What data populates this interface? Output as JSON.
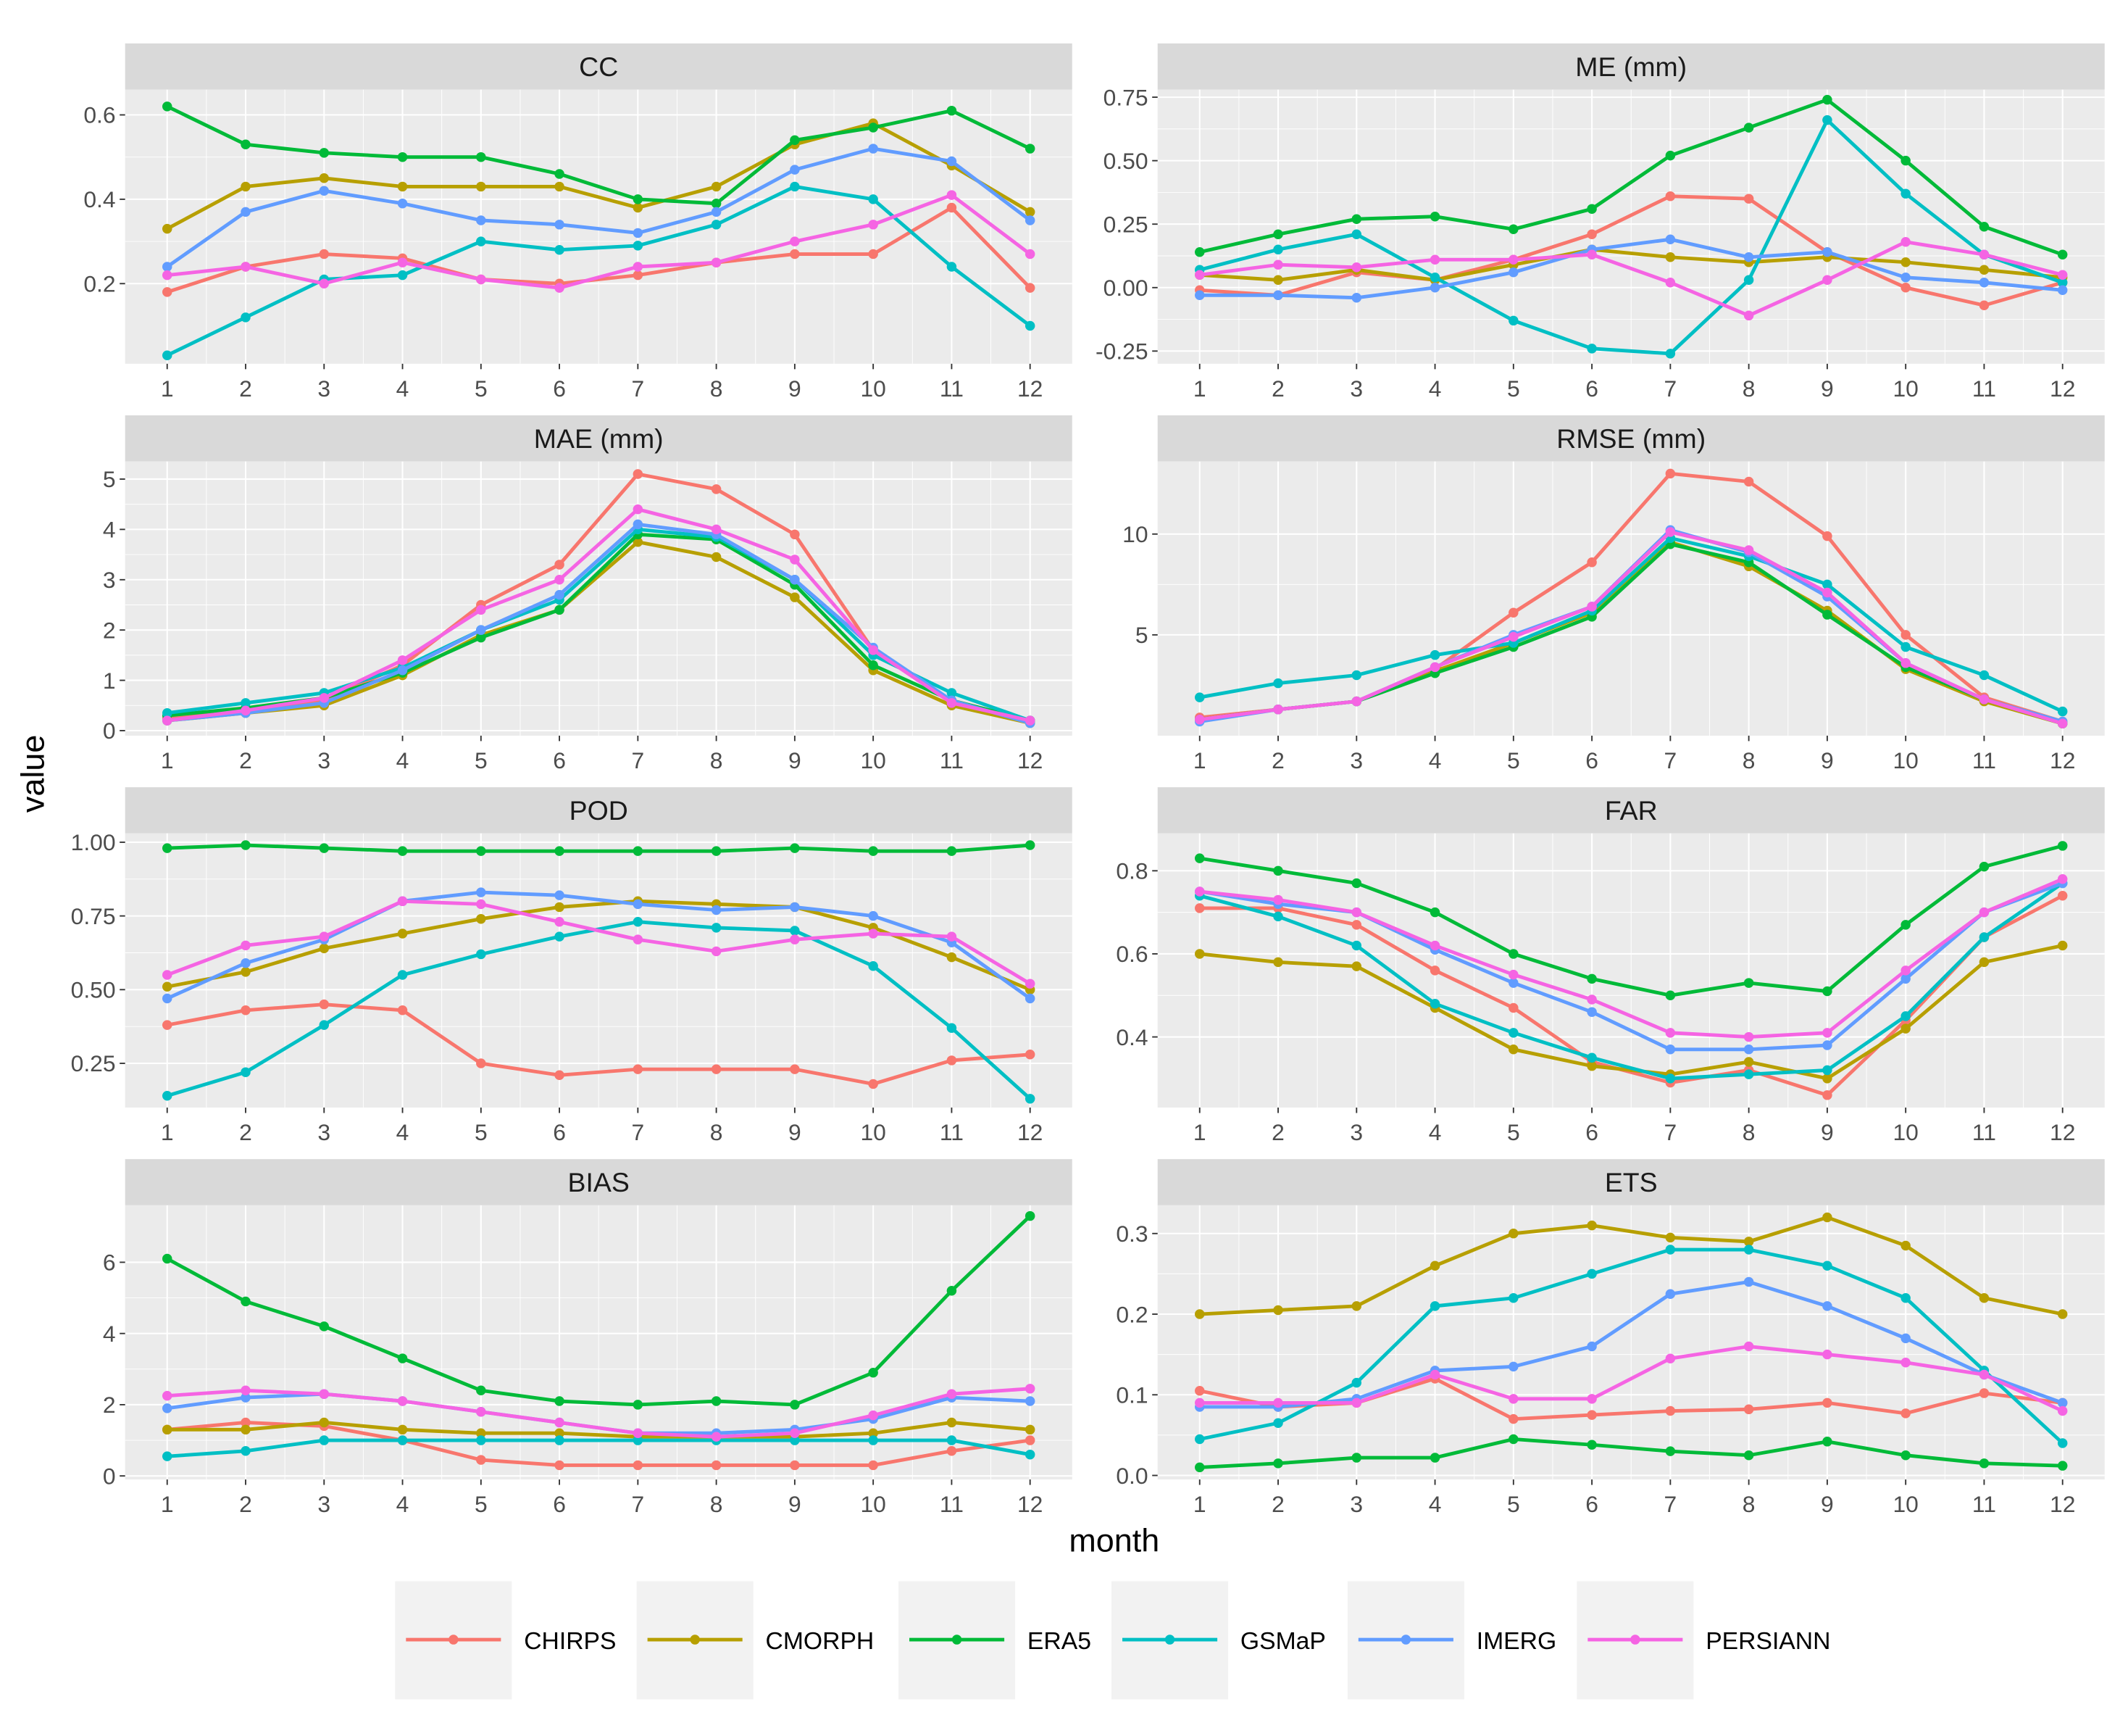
{
  "chart_data": {
    "type": "line",
    "xlabel": "month",
    "ylabel": "value",
    "x": [
      1,
      2,
      3,
      4,
      5,
      6,
      7,
      8,
      9,
      10,
      11,
      12
    ],
    "legend": {
      "placement": "bottom",
      "entries": [
        "CHIRPS",
        "CMORPH",
        "ERA5",
        "GSMaP",
        "IMERG",
        "PERSIANN"
      ],
      "colors": [
        "#F8766D",
        "#B79F00",
        "#00BA38",
        "#00BFC4",
        "#619CFF",
        "#F564E3"
      ]
    },
    "panels": [
      {
        "title": "CC",
        "ylim": [
          0.01,
          0.66
        ],
        "yticks": [
          0.2,
          0.4,
          0.6
        ],
        "ytick_labels": [
          "0.2",
          "0.4",
          "0.6"
        ],
        "series": [
          {
            "name": "CHIRPS",
            "values": [
              0.18,
              0.24,
              0.27,
              0.26,
              0.21,
              0.2,
              0.22,
              0.25,
              0.27,
              0.27,
              0.38,
              0.19
            ]
          },
          {
            "name": "CMORPH",
            "values": [
              0.33,
              0.43,
              0.45,
              0.43,
              0.43,
              0.43,
              0.38,
              0.43,
              0.53,
              0.58,
              0.48,
              0.37
            ]
          },
          {
            "name": "ERA5",
            "values": [
              0.62,
              0.53,
              0.51,
              0.5,
              0.5,
              0.46,
              0.4,
              0.39,
              0.54,
              0.57,
              0.61,
              0.52
            ]
          },
          {
            "name": "GSMaP",
            "values": [
              0.03,
              0.12,
              0.21,
              0.22,
              0.3,
              0.28,
              0.29,
              0.34,
              0.43,
              0.4,
              0.24,
              0.1
            ]
          },
          {
            "name": "IMERG",
            "values": [
              0.24,
              0.37,
              0.42,
              0.39,
              0.35,
              0.34,
              0.32,
              0.37,
              0.47,
              0.52,
              0.49,
              0.35
            ]
          },
          {
            "name": "PERSIANN",
            "values": [
              0.22,
              0.24,
              0.2,
              0.25,
              0.21,
              0.19,
              0.24,
              0.25,
              0.3,
              0.34,
              0.41,
              0.27
            ]
          }
        ]
      },
      {
        "title": "ME (mm)",
        "ylim": [
          -0.3,
          0.78
        ],
        "yticks": [
          -0.25,
          0,
          0.25,
          0.5,
          0.75
        ],
        "ytick_labels": [
          "-0.25",
          "0.00",
          "0.25",
          "0.50",
          "0.75"
        ],
        "series": [
          {
            "name": "CHIRPS",
            "values": [
              -0.01,
              -0.03,
              0.06,
              0.03,
              0.11,
              0.21,
              0.36,
              0.35,
              0.14,
              0.0,
              -0.07,
              0.02
            ]
          },
          {
            "name": "CMORPH",
            "values": [
              0.05,
              0.03,
              0.07,
              0.03,
              0.09,
              0.15,
              0.12,
              0.1,
              0.12,
              0.1,
              0.07,
              0.04
            ]
          },
          {
            "name": "ERA5",
            "values": [
              0.14,
              0.21,
              0.27,
              0.28,
              0.23,
              0.31,
              0.52,
              0.63,
              0.74,
              0.5,
              0.24,
              0.13
            ]
          },
          {
            "name": "GSMaP",
            "values": [
              0.07,
              0.15,
              0.21,
              0.04,
              -0.13,
              -0.24,
              -0.26,
              0.03,
              0.66,
              0.37,
              0.13,
              0.02
            ]
          },
          {
            "name": "IMERG",
            "values": [
              -0.03,
              -0.03,
              -0.04,
              0.0,
              0.06,
              0.15,
              0.19,
              0.12,
              0.14,
              0.04,
              0.02,
              -0.01
            ]
          },
          {
            "name": "PERSIANN",
            "values": [
              0.05,
              0.09,
              0.08,
              0.11,
              0.11,
              0.13,
              0.02,
              -0.11,
              0.03,
              0.18,
              0.13,
              0.05
            ]
          }
        ]
      },
      {
        "title": "MAE (mm)",
        "ylim": [
          -0.1,
          5.35
        ],
        "yticks": [
          0,
          1,
          2,
          3,
          4,
          5
        ],
        "ytick_labels": [
          "0",
          "1",
          "2",
          "3",
          "4",
          "5"
        ],
        "series": [
          {
            "name": "CHIRPS",
            "values": [
              0.25,
              0.4,
              0.6,
              1.3,
              2.5,
              3.3,
              5.1,
              4.8,
              3.9,
              1.6,
              0.6,
              0.2
            ]
          },
          {
            "name": "CMORPH",
            "values": [
              0.2,
              0.35,
              0.5,
              1.1,
              1.9,
              2.4,
              3.75,
              3.45,
              2.65,
              1.2,
              0.5,
              0.15
            ]
          },
          {
            "name": "ERA5",
            "values": [
              0.3,
              0.45,
              0.65,
              1.15,
              1.85,
              2.4,
              3.9,
              3.8,
              2.9,
              1.3,
              0.6,
              0.2
            ]
          },
          {
            "name": "GSMaP",
            "values": [
              0.35,
              0.55,
              0.75,
              1.25,
              2.0,
              2.6,
              4.0,
              3.85,
              3.0,
              1.5,
              0.75,
              0.2
            ]
          },
          {
            "name": "IMERG",
            "values": [
              0.2,
              0.35,
              0.55,
              1.2,
              2.0,
              2.7,
              4.1,
              3.9,
              3.0,
              1.65,
              0.6,
              0.15
            ]
          },
          {
            "name": "PERSIANN",
            "values": [
              0.2,
              0.4,
              0.65,
              1.4,
              2.4,
              3.0,
              4.4,
              4.0,
              3.4,
              1.6,
              0.55,
              0.2
            ]
          }
        ]
      },
      {
        "title": "RMSE (mm)",
        "ylim": [
          0.0,
          13.6
        ],
        "yticks": [
          5,
          10
        ],
        "ytick_labels": [
          "5",
          "10"
        ],
        "series": [
          {
            "name": "CHIRPS",
            "values": [
              0.9,
              1.3,
              1.7,
              3.3,
              6.1,
              8.6,
              13.0,
              12.6,
              9.9,
              5.0,
              1.9,
              0.7
            ]
          },
          {
            "name": "CMORPH",
            "values": [
              0.8,
              1.3,
              1.7,
              3.2,
              4.6,
              6.1,
              9.6,
              8.4,
              6.2,
              3.3,
              1.7,
              0.6
            ]
          },
          {
            "name": "ERA5",
            "values": [
              0.8,
              1.3,
              1.7,
              3.1,
              4.4,
              5.9,
              9.5,
              8.6,
              6.0,
              3.4,
              1.8,
              0.6
            ]
          },
          {
            "name": "GSMaP",
            "values": [
              1.9,
              2.6,
              3.0,
              4.0,
              4.6,
              6.2,
              9.8,
              8.9,
              7.5,
              4.4,
              3.0,
              1.2
            ]
          },
          {
            "name": "IMERG",
            "values": [
              0.7,
              1.3,
              1.7,
              3.4,
              5.0,
              6.4,
              10.2,
              9.1,
              6.9,
              3.6,
              1.8,
              0.7
            ]
          },
          {
            "name": "PERSIANN",
            "values": [
              0.8,
              1.3,
              1.7,
              3.4,
              4.9,
              6.4,
              10.1,
              9.2,
              7.1,
              3.6,
              1.8,
              0.6
            ]
          }
        ]
      },
      {
        "title": "POD",
        "ylim": [
          0.1,
          1.03
        ],
        "yticks": [
          0.25,
          0.5,
          0.75,
          1.0
        ],
        "ytick_labels": [
          "0.25",
          "0.50",
          "0.75",
          "1.00"
        ],
        "series": [
          {
            "name": "CHIRPS",
            "values": [
              0.38,
              0.43,
              0.45,
              0.43,
              0.25,
              0.21,
              0.23,
              0.23,
              0.23,
              0.18,
              0.26,
              0.28
            ]
          },
          {
            "name": "CMORPH",
            "values": [
              0.51,
              0.56,
              0.64,
              0.69,
              0.74,
              0.78,
              0.8,
              0.79,
              0.78,
              0.71,
              0.61,
              0.5
            ]
          },
          {
            "name": "ERA5",
            "values": [
              0.98,
              0.99,
              0.98,
              0.97,
              0.97,
              0.97,
              0.97,
              0.97,
              0.98,
              0.97,
              0.97,
              0.99
            ]
          },
          {
            "name": "GSMaP",
            "values": [
              0.14,
              0.22,
              0.38,
              0.55,
              0.62,
              0.68,
              0.73,
              0.71,
              0.7,
              0.58,
              0.37,
              0.13
            ]
          },
          {
            "name": "IMERG",
            "values": [
              0.47,
              0.59,
              0.67,
              0.8,
              0.83,
              0.82,
              0.79,
              0.77,
              0.78,
              0.75,
              0.66,
              0.47
            ]
          },
          {
            "name": "PERSIANN",
            "values": [
              0.55,
              0.65,
              0.68,
              0.8,
              0.79,
              0.73,
              0.67,
              0.63,
              0.67,
              0.69,
              0.68,
              0.52
            ]
          }
        ]
      },
      {
        "title": "FAR",
        "ylim": [
          0.23,
          0.89
        ],
        "yticks": [
          0.4,
          0.6,
          0.8
        ],
        "ytick_labels": [
          "0.4",
          "0.6",
          "0.8"
        ],
        "series": [
          {
            "name": "CHIRPS",
            "values": [
              0.71,
              0.71,
              0.67,
              0.56,
              0.47,
              0.34,
              0.29,
              0.32,
              0.26,
              0.44,
              0.64,
              0.74
            ]
          },
          {
            "name": "CMORPH",
            "values": [
              0.6,
              0.58,
              0.57,
              0.47,
              0.37,
              0.33,
              0.31,
              0.34,
              0.3,
              0.42,
              0.58,
              0.62
            ]
          },
          {
            "name": "ERA5",
            "values": [
              0.83,
              0.8,
              0.77,
              0.7,
              0.6,
              0.54,
              0.5,
              0.53,
              0.51,
              0.67,
              0.81,
              0.86
            ]
          },
          {
            "name": "GSMaP",
            "values": [
              0.74,
              0.69,
              0.62,
              0.48,
              0.41,
              0.35,
              0.3,
              0.31,
              0.32,
              0.45,
              0.64,
              0.77
            ]
          },
          {
            "name": "IMERG",
            "values": [
              0.75,
              0.72,
              0.7,
              0.61,
              0.53,
              0.46,
              0.37,
              0.37,
              0.38,
              0.54,
              0.7,
              0.77
            ]
          },
          {
            "name": "PERSIANN",
            "values": [
              0.75,
              0.73,
              0.7,
              0.62,
              0.55,
              0.49,
              0.41,
              0.4,
              0.41,
              0.56,
              0.7,
              0.78
            ]
          }
        ]
      },
      {
        "title": "BIAS",
        "ylim": [
          -0.1,
          7.6
        ],
        "yticks": [
          0,
          2,
          4,
          6
        ],
        "ytick_labels": [
          "0",
          "2",
          "4",
          "6"
        ],
        "series": [
          {
            "name": "CHIRPS",
            "values": [
              1.3,
              1.5,
              1.4,
              1.0,
              0.45,
              0.3,
              0.3,
              0.3,
              0.3,
              0.3,
              0.7,
              1.0
            ]
          },
          {
            "name": "CMORPH",
            "values": [
              1.3,
              1.3,
              1.5,
              1.3,
              1.2,
              1.2,
              1.1,
              1.1,
              1.1,
              1.2,
              1.5,
              1.3
            ]
          },
          {
            "name": "ERA5",
            "values": [
              6.1,
              4.9,
              4.2,
              3.3,
              2.4,
              2.1,
              2.0,
              2.1,
              2.0,
              2.9,
              5.2,
              7.3
            ]
          },
          {
            "name": "GSMaP",
            "values": [
              0.55,
              0.7,
              1.0,
              1.0,
              1.0,
              1.0,
              1.0,
              1.0,
              1.0,
              1.0,
              1.0,
              0.6
            ]
          },
          {
            "name": "IMERG",
            "values": [
              1.9,
              2.2,
              2.3,
              2.1,
              1.8,
              1.5,
              1.2,
              1.2,
              1.3,
              1.6,
              2.2,
              2.1
            ]
          },
          {
            "name": "PERSIANN",
            "values": [
              2.25,
              2.4,
              2.3,
              2.1,
              1.8,
              1.5,
              1.2,
              1.1,
              1.2,
              1.7,
              2.3,
              2.45
            ]
          }
        ]
      },
      {
        "title": "ETS",
        "ylim": [
          -0.005,
          0.335
        ],
        "yticks": [
          0,
          0.1,
          0.2,
          0.3
        ],
        "ytick_labels": [
          "0.0",
          "0.1",
          "0.2",
          "0.3"
        ],
        "series": [
          {
            "name": "CHIRPS",
            "values": [
              0.105,
              0.085,
              0.09,
              0.12,
              0.07,
              0.075,
              0.08,
              0.082,
              0.09,
              0.077,
              0.102,
              0.09
            ]
          },
          {
            "name": "CMORPH",
            "values": [
              0.2,
              0.205,
              0.21,
              0.26,
              0.3,
              0.31,
              0.295,
              0.29,
              0.32,
              0.285,
              0.22,
              0.2
            ]
          },
          {
            "name": "ERA5",
            "values": [
              0.01,
              0.015,
              0.022,
              0.022,
              0.045,
              0.038,
              0.03,
              0.025,
              0.042,
              0.025,
              0.015,
              0.012
            ]
          },
          {
            "name": "GSMaP",
            "values": [
              0.045,
              0.065,
              0.115,
              0.21,
              0.22,
              0.25,
              0.28,
              0.28,
              0.26,
              0.22,
              0.13,
              0.04
            ]
          },
          {
            "name": "IMERG",
            "values": [
              0.085,
              0.085,
              0.095,
              0.13,
              0.135,
              0.16,
              0.225,
              0.24,
              0.21,
              0.17,
              0.125,
              0.09
            ]
          },
          {
            "name": "PERSIANN",
            "values": [
              0.09,
              0.09,
              0.09,
              0.125,
              0.095,
              0.095,
              0.145,
              0.16,
              0.15,
              0.14,
              0.125,
              0.08
            ]
          }
        ]
      }
    ]
  }
}
